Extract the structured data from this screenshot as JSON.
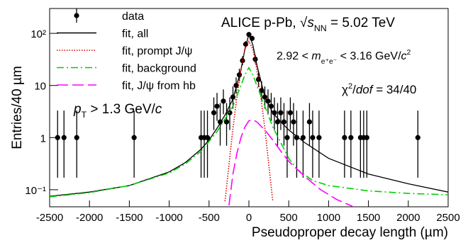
{
  "chart_data": {
    "type": "hep-fit",
    "xlabel": "Pseudoproper decay length (µm)",
    "ylabel": "Entries/40 µm",
    "xlim": [
      -2500,
      2500
    ],
    "xticks": [
      -2500,
      -2000,
      -1500,
      -1000,
      -500,
      0,
      500,
      1000,
      1500,
      2000,
      2500
    ],
    "ylim": [
      0.047,
      300
    ],
    "log_y": true,
    "yticks": [
      {
        "value": 0.1,
        "label": "10⁻¹"
      },
      1,
      10,
      {
        "value": 100,
        "label": "10²"
      }
    ],
    "legend": "top-left",
    "series": [
      {
        "name": "data",
        "kind": "points",
        "color": "#000000",
        "x": [
          -2400,
          -2320,
          -2160,
          -1440,
          -600,
          -560,
          -520,
          -440,
          -400,
          -360,
          -320,
          -280,
          -240,
          -200,
          -160,
          -120,
          -80,
          -40,
          0,
          40,
          80,
          120,
          160,
          200,
          240,
          280,
          320,
          360,
          400,
          440,
          480,
          520,
          560,
          600,
          680,
          760,
          800,
          880,
          1200,
          1280,
          1400,
          1440,
          1480,
          2120
        ],
        "values": [
          1,
          1,
          1,
          1,
          1,
          1,
          1,
          3,
          4,
          2,
          5,
          2,
          3,
          6,
          10,
          16,
          30,
          62,
          95,
          80,
          32,
          13,
          8,
          6,
          5,
          4,
          3,
          2,
          3,
          2,
          1,
          3,
          2,
          1,
          1,
          2,
          1,
          1,
          1,
          1,
          1,
          1,
          1,
          1
        ],
        "error_low": [
          0.83,
          0.83,
          0.83,
          0.83,
          0.83,
          0.83,
          0.83,
          1.6,
          1.9,
          1.3,
          2.2,
          1.3,
          1.6,
          2.4,
          3.1,
          4,
          5.5,
          7.9,
          9.7,
          8.9,
          5.6,
          3.6,
          2.8,
          2.4,
          2.2,
          1.9,
          1.6,
          1.3,
          1.6,
          1.3,
          0.83,
          1.6,
          1.3,
          0.83,
          0.83,
          1.3,
          0.83,
          0.83,
          0.83,
          0.83,
          0.83,
          0.83,
          0.83,
          0.83
        ],
        "error_high": [
          2.3,
          2.3,
          2.3,
          2.3,
          2.3,
          2.3,
          2.3,
          2.9,
          3.2,
          2.6,
          3.4,
          2.6,
          2.9,
          3.6,
          4.3,
          5,
          6.5,
          8.9,
          10.7,
          9.9,
          6.7,
          4.7,
          4,
          3.6,
          3.4,
          3.2,
          2.9,
          2.6,
          2.9,
          2.6,
          2.3,
          2.9,
          2.6,
          2.3,
          2.3,
          2.6,
          2.3,
          2.3,
          2.3,
          2.3,
          2.3,
          2.3,
          2.3,
          2.3
        ]
      },
      {
        "name": "fit, all",
        "kind": "line",
        "dash": "solid",
        "color": "#000000",
        "x": [
          -2500,
          -2000,
          -1500,
          -1000,
          -800,
          -600,
          -500,
          -400,
          -300,
          -200,
          -100,
          -50,
          0,
          50,
          100,
          200,
          300,
          400,
          500,
          700,
          1000,
          1500,
          2000,
          2500
        ],
        "values": [
          0.075,
          0.09,
          0.12,
          0.22,
          0.33,
          0.6,
          0.9,
          1.5,
          2.7,
          5.5,
          20,
          50,
          95,
          60,
          25,
          6,
          3,
          2,
          1.4,
          0.8,
          0.4,
          0.2,
          0.13,
          0.09
        ]
      },
      {
        "name": "fit, prompt J/ψ",
        "kind": "line",
        "dash": "dotted",
        "color": "#e00000",
        "x": [
          -300,
          -250,
          -200,
          -150,
          -100,
          -50,
          0,
          50,
          100,
          150,
          200,
          250,
          300
        ],
        "values": [
          0.06,
          0.3,
          1.5,
          6,
          20,
          50,
          70,
          50,
          20,
          6,
          1.5,
          0.3,
          0.06
        ]
      },
      {
        "name": "fit, background",
        "kind": "line",
        "dash": "dashed",
        "color": "#00d000",
        "x": [
          -2500,
          -2000,
          -1500,
          -1000,
          -800,
          -600,
          -400,
          -200,
          -100,
          -50,
          0,
          50,
          100,
          200,
          300,
          400,
          500,
          600,
          800,
          1000,
          1500,
          2000,
          2500
        ],
        "values": [
          0.073,
          0.088,
          0.12,
          0.21,
          0.31,
          0.55,
          1.3,
          4,
          10,
          16,
          22,
          16,
          10,
          4,
          1.6,
          0.8,
          0.4,
          0.25,
          0.15,
          0.12,
          0.095,
          0.085,
          0.08
        ]
      },
      {
        "name": "fit, J/ψ from hb",
        "kind": "line",
        "dash": "longdash",
        "color": "#ff00ff",
        "x": [
          -250,
          -200,
          -150,
          -100,
          -50,
          0,
          50,
          100,
          200,
          300,
          400,
          500,
          700,
          900,
          1100,
          1300
        ],
        "values": [
          0.05,
          0.2,
          0.5,
          1,
          1.6,
          2.1,
          2.2,
          2,
          1.4,
          0.9,
          0.55,
          0.35,
          0.18,
          0.1,
          0.065,
          0.048
        ]
      }
    ],
    "annotations": [
      {
        "segments": [
          {
            "text": "ALICE p-Pb, "
          },
          {
            "text": "√"
          },
          {
            "text": "s",
            "style": "italic"
          },
          {
            "text": "NN",
            "style": "sub"
          },
          {
            "text": " = 5.02 TeV"
          }
        ]
      },
      {
        "segments": [
          {
            "text": "2.92 < "
          },
          {
            "text": "m",
            "style": "italic"
          },
          {
            "text": "e⁺e⁻",
            "style": "sub"
          },
          {
            "text": " < 3.16 GeV/"
          },
          {
            "text": "c",
            "style": "italic"
          },
          {
            "text": "2",
            "style": "sup"
          }
        ]
      },
      {
        "segments": [
          {
            "text": "χ"
          },
          {
            "text": "2",
            "style": "sup"
          },
          {
            "text": "/"
          },
          {
            "text": "dof",
            "style": "italic"
          },
          {
            "text": " = 34/40"
          }
        ]
      },
      {
        "segments": [
          {
            "text": "p",
            "style": "italic"
          },
          {
            "text": "T",
            "style": "sub"
          },
          {
            "text": " > 1.3 GeV/"
          },
          {
            "text": "c",
            "style": "italic"
          }
        ]
      }
    ]
  }
}
